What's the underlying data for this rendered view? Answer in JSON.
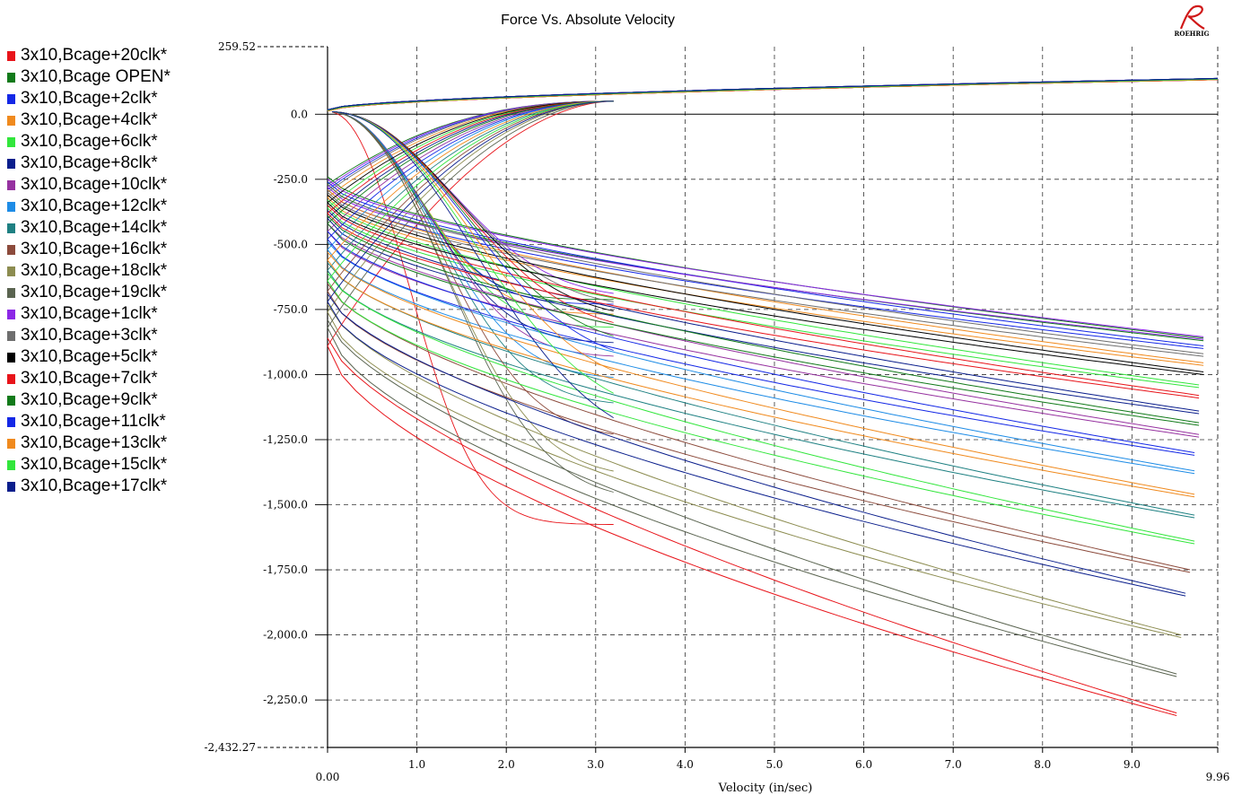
{
  "chart_data": {
    "type": "line",
    "title": "Force Vs. Absolute Velocity",
    "xlabel": "Velocity (in/sec)",
    "ylabel": "",
    "xlim": [
      0.0,
      9.96
    ],
    "ylim": [
      -2432.27,
      259.52
    ],
    "x_ticks": [
      "0.00",
      "1.0",
      "2.0",
      "3.0",
      "4.0",
      "5.0",
      "6.0",
      "7.0",
      "8.0",
      "9.0",
      "9.96"
    ],
    "y_ticks": [
      "259.52",
      "0.0",
      "-250.0",
      "-500.0",
      "-750.0",
      "-1,000.0",
      "-1,250.0",
      "-1,500.0",
      "-1,750.0",
      "-2,000.0",
      "-2,250.0",
      "-2,432.27"
    ],
    "grid": true,
    "legend_position": "left",
    "logo_text": "ROEHRIG",
    "series": [
      {
        "name": "3x10,Bcage+20clk*",
        "color": "#e8141a",
        "end_x": 9.5,
        "end_y": -2310,
        "start_y": -890,
        "shape": 1.55
      },
      {
        "name": "3x10,Bcage OPEN*",
        "color": "#127a1a",
        "end_x": 9.8,
        "end_y": -870,
        "start_y": -270,
        "shape": 0.5
      },
      {
        "name": "3x10,Bcage+2clk*",
        "color": "#1428e6",
        "end_x": 9.8,
        "end_y": -900,
        "start_y": -290,
        "shape": 0.55
      },
      {
        "name": "3x10,Bcage+4clk*",
        "color": "#f08a1e",
        "end_x": 9.8,
        "end_y": -965,
        "start_y": -320,
        "shape": 0.65
      },
      {
        "name": "3x10,Bcage+6clk*",
        "color": "#32e63c",
        "end_x": 9.75,
        "end_y": -1050,
        "start_y": -360,
        "shape": 0.75
      },
      {
        "name": "3x10,Bcage+8clk*",
        "color": "#0a1e8c",
        "end_x": 9.75,
        "end_y": -1150,
        "start_y": -400,
        "shape": 0.85
      },
      {
        "name": "3x10,Bcage+10clk*",
        "color": "#9632a0",
        "end_x": 9.75,
        "end_y": -1240,
        "start_y": -450,
        "shape": 0.95
      },
      {
        "name": "3x10,Bcage+12clk*",
        "color": "#1e8ce6",
        "end_x": 9.7,
        "end_y": -1380,
        "start_y": -520,
        "shape": 1.0
      },
      {
        "name": "3x10,Bcage+14clk*",
        "color": "#1e8082",
        "end_x": 9.7,
        "end_y": -1550,
        "start_y": -600,
        "shape": 1.1
      },
      {
        "name": "3x10,Bcage+16clk*",
        "color": "#8c4b3c",
        "end_x": 9.65,
        "end_y": -1760,
        "start_y": -680,
        "shape": 1.2
      },
      {
        "name": "3x10,Bcage+18clk*",
        "color": "#8c8c50",
        "end_x": 9.55,
        "end_y": -2010,
        "start_y": -760,
        "shape": 1.3
      },
      {
        "name": "3x10,Bcage+19clk*",
        "color": "#5a6450",
        "end_x": 9.5,
        "end_y": -2160,
        "start_y": -820,
        "shape": 1.4
      },
      {
        "name": "3x10,Bcage+1clk*",
        "color": "#8c28e6",
        "end_x": 9.8,
        "end_y": -865,
        "start_y": -280,
        "shape": 0.5
      },
      {
        "name": "3x10,Bcage+3clk*",
        "color": "#6e6e6e",
        "end_x": 9.8,
        "end_y": -930,
        "start_y": -300,
        "shape": 0.6
      },
      {
        "name": "3x10,Bcage+5clk*",
        "color": "#000000",
        "end_x": 9.8,
        "end_y": -1000,
        "start_y": -340,
        "shape": 0.7
      },
      {
        "name": "3x10,Bcage+7clk*",
        "color": "#e8141a",
        "end_x": 9.75,
        "end_y": -1090,
        "start_y": -380,
        "shape": 0.8
      },
      {
        "name": "3x10,Bcage+9clk*",
        "color": "#127a1a",
        "end_x": 9.75,
        "end_y": -1195,
        "start_y": -420,
        "shape": 0.9
      },
      {
        "name": "3x10,Bcage+11clk*",
        "color": "#1428e6",
        "end_x": 9.7,
        "end_y": -1310,
        "start_y": -480,
        "shape": 1.0
      },
      {
        "name": "3x10,Bcage+13clk*",
        "color": "#f08a1e",
        "end_x": 9.7,
        "end_y": -1470,
        "start_y": -560,
        "shape": 1.05
      },
      {
        "name": "3x10,Bcage+15clk*",
        "color": "#32e63c",
        "end_x": 9.7,
        "end_y": -1650,
        "start_y": -640,
        "shape": 1.15
      },
      {
        "name": "3x10,Bcage+17clk*",
        "color": "#0a1e8c",
        "end_x": 9.6,
        "end_y": -1850,
        "start_y": -720,
        "shape": 1.25
      }
    ],
    "rebound_envelope": {
      "end_x": 9.96,
      "end_y": 135
    }
  }
}
